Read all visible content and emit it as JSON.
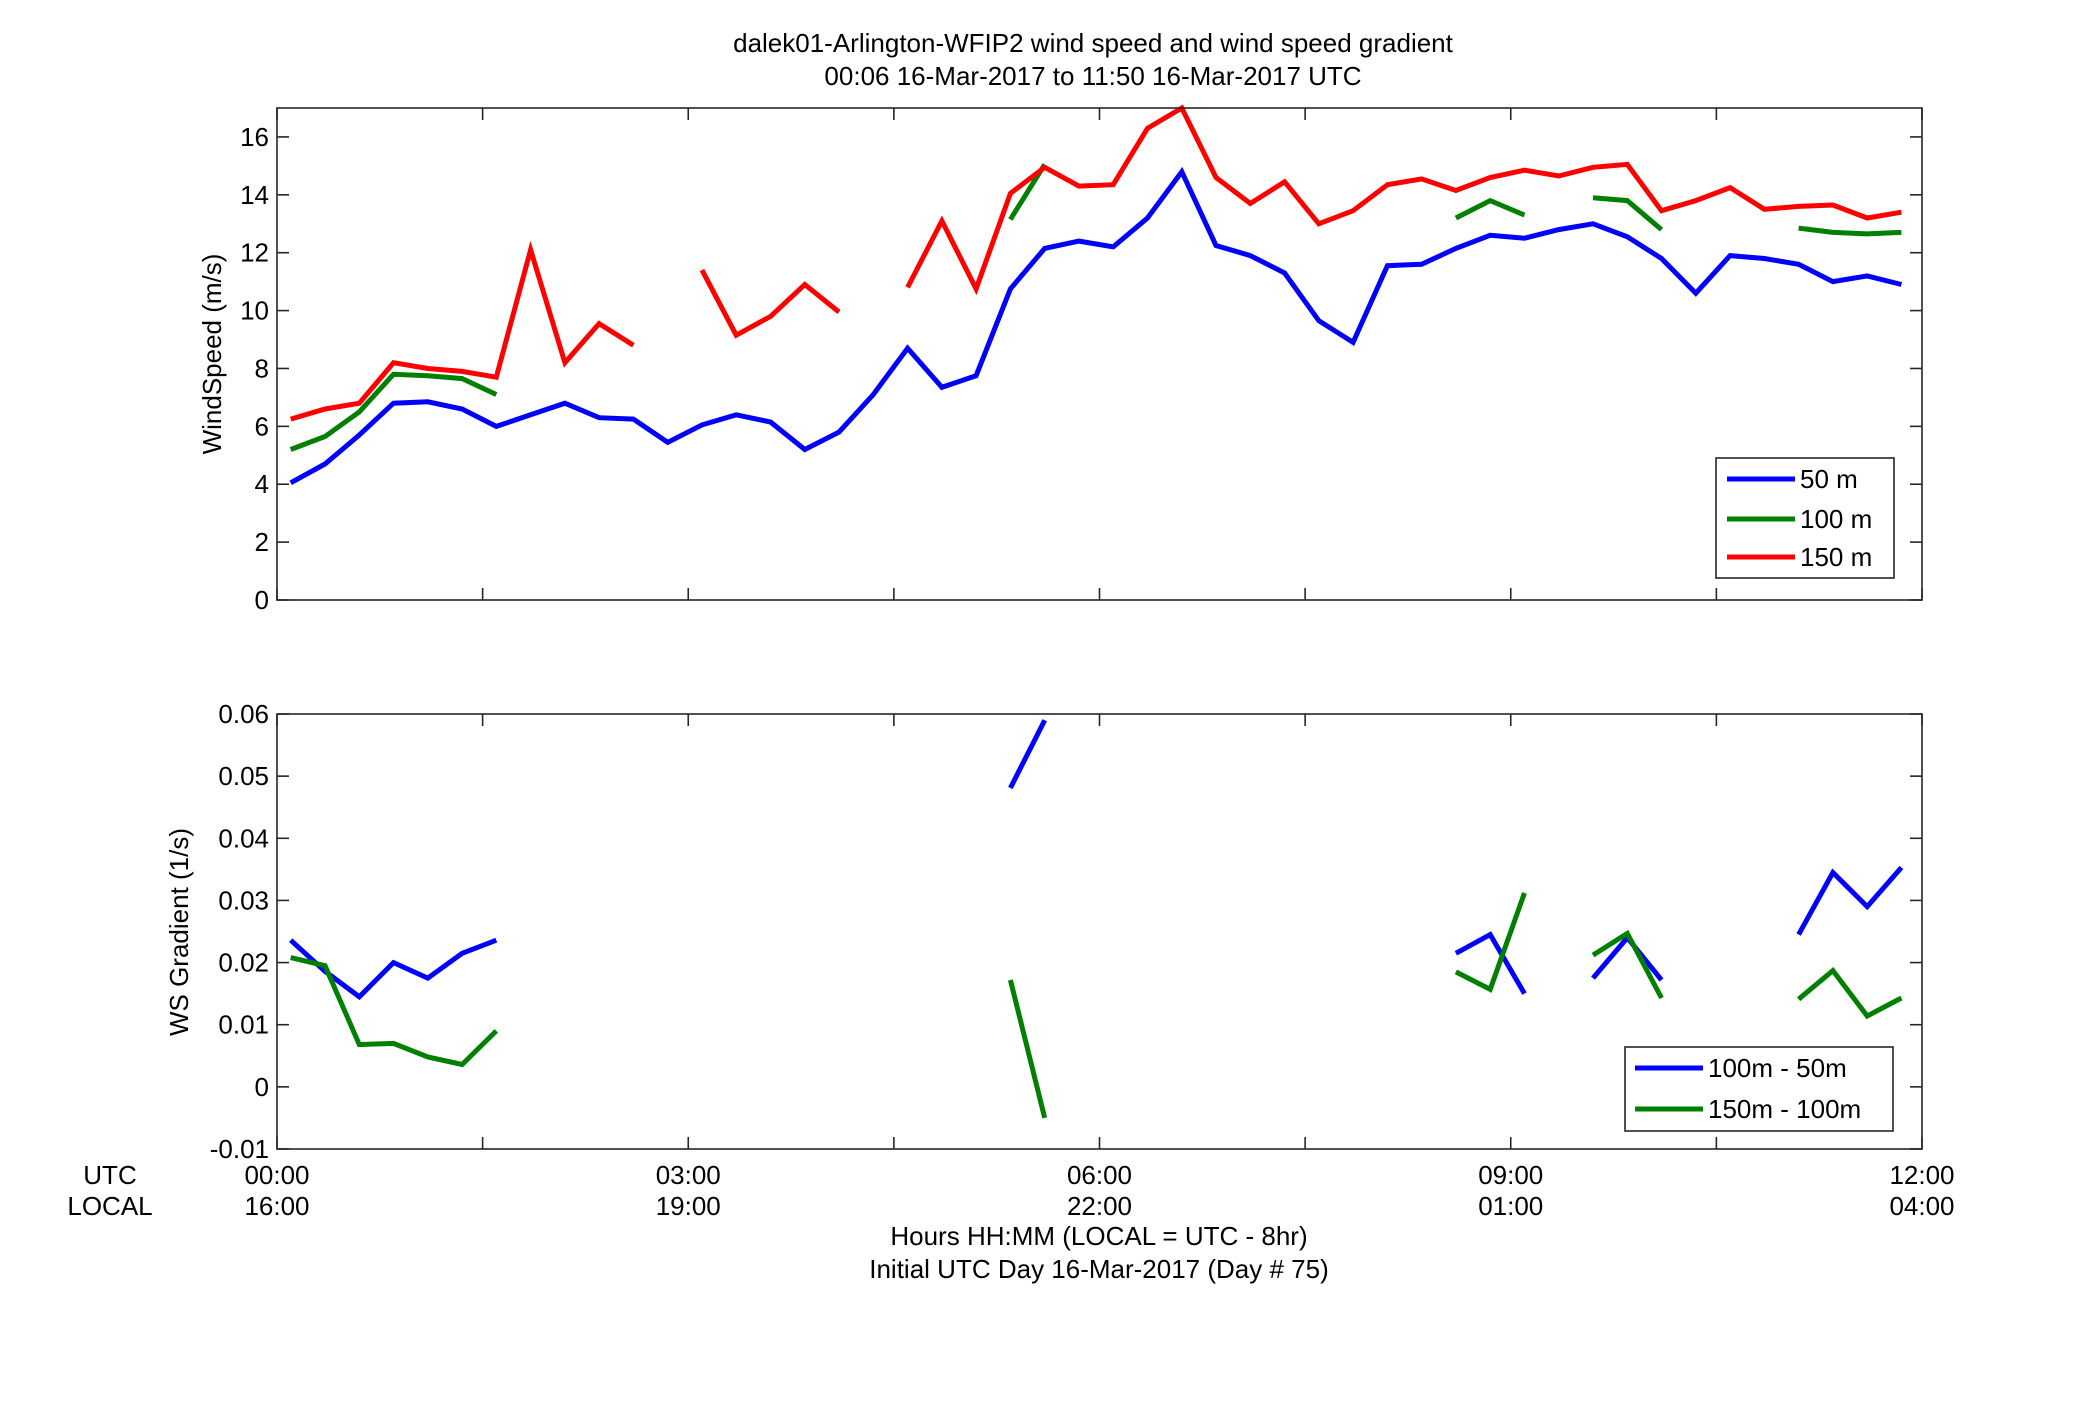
{
  "title_line1": "dalek01-Arlington-WFIP2  wind speed and wind speed gradient",
  "title_line2": "00:06 16-Mar-2017 to 11:50 16-Mar-2017  UTC",
  "xaxis": {
    "row1_label": "UTC",
    "row2_label": "LOCAL",
    "ticks_utc": [
      "00:00",
      "03:00",
      "06:00",
      "09:00",
      "12:00"
    ],
    "ticks_local": [
      "16:00",
      "19:00",
      "22:00",
      "01:00",
      "04:00"
    ],
    "tick_hours": [
      0,
      3,
      6,
      9,
      12
    ],
    "xlabel_line1": "Hours HH:MM  (LOCAL = UTC - 8hr)",
    "xlabel_line2": "Initial UTC Day 16-Mar-2017 (Day # 75)",
    "xlim": [
      0,
      12
    ]
  },
  "chart_data": [
    {
      "type": "line",
      "ylabel": "WindSpeed (m/s)",
      "ylim": [
        0,
        17
      ],
      "yticks": [
        0,
        2,
        4,
        6,
        8,
        10,
        12,
        14,
        16
      ],
      "grid": false,
      "legend_position": "bottom-right",
      "x_unit": "hours UTC",
      "series": [
        {
          "name": "50 m",
          "color": "#0000ff",
          "points": [
            [
              0.1,
              4.05
            ],
            [
              0.35,
              4.7
            ],
            [
              0.6,
              5.7
            ],
            [
              0.85,
              6.8
            ],
            [
              1.1,
              6.85
            ],
            [
              1.35,
              6.6
            ],
            [
              1.6,
              6.0
            ],
            [
              1.85,
              6.4
            ],
            [
              2.1,
              6.8
            ],
            [
              2.35,
              6.3
            ],
            [
              2.6,
              6.25
            ],
            [
              2.85,
              5.45
            ],
            [
              3.1,
              6.05
            ],
            [
              3.35,
              6.4
            ],
            [
              3.6,
              6.15
            ],
            [
              3.85,
              5.2
            ],
            [
              4.1,
              5.8
            ],
            [
              4.35,
              7.1
            ],
            [
              4.6,
              8.7
            ],
            [
              4.85,
              7.35
            ],
            [
              5.1,
              7.75
            ],
            [
              5.35,
              10.75
            ],
            [
              5.6,
              12.15
            ],
            [
              5.85,
              12.4
            ],
            [
              6.1,
              12.2
            ],
            [
              6.35,
              13.2
            ],
            [
              6.6,
              14.8
            ],
            [
              6.85,
              12.25
            ],
            [
              7.1,
              11.9
            ],
            [
              7.35,
              11.3
            ],
            [
              7.6,
              9.65
            ],
            [
              7.85,
              8.9
            ],
            [
              8.1,
              11.55
            ],
            [
              8.35,
              11.6
            ],
            [
              8.6,
              12.15
            ],
            [
              8.85,
              12.6
            ],
            [
              9.1,
              12.5
            ],
            [
              9.35,
              12.8
            ],
            [
              9.6,
              13.0
            ],
            [
              9.85,
              12.55
            ],
            [
              10.1,
              11.8
            ],
            [
              10.35,
              10.6
            ],
            [
              10.6,
              11.9
            ],
            [
              10.85,
              11.8
            ],
            [
              11.1,
              11.6
            ],
            [
              11.35,
              11.0
            ],
            [
              11.6,
              11.2
            ],
            [
              11.85,
              10.9
            ]
          ]
        },
        {
          "name": "100 m",
          "color": "#007f00",
          "segments": [
            [
              [
                0.1,
                5.2
              ],
              [
                0.35,
                5.65
              ],
              [
                0.6,
                6.5
              ],
              [
                0.85,
                7.8
              ],
              [
                1.1,
                7.75
              ],
              [
                1.35,
                7.65
              ],
              [
                1.6,
                7.1
              ]
            ],
            [
              [
                5.35,
                13.15
              ],
              [
                5.6,
                15.05
              ]
            ],
            [
              [
                8.6,
                13.2
              ],
              [
                8.85,
                13.8
              ],
              [
                9.1,
                13.3
              ]
            ],
            [
              [
                9.6,
                13.9
              ],
              [
                9.85,
                13.8
              ],
              [
                10.1,
                12.8
              ]
            ],
            [
              [
                11.1,
                12.85
              ],
              [
                11.35,
                12.7
              ],
              [
                11.6,
                12.65
              ],
              [
                11.85,
                12.7
              ]
            ]
          ]
        },
        {
          "name": "150 m",
          "color": "#ff0000",
          "segments": [
            [
              [
                0.1,
                6.25
              ],
              [
                0.35,
                6.6
              ],
              [
                0.6,
                6.8
              ],
              [
                0.85,
                8.2
              ],
              [
                1.1,
                8.0
              ],
              [
                1.35,
                7.9
              ],
              [
                1.6,
                7.7
              ],
              [
                1.85,
                12.1
              ],
              [
                2.1,
                8.2
              ],
              [
                2.35,
                9.55
              ],
              [
                2.6,
                8.8
              ]
            ],
            [
              [
                3.1,
                11.4
              ],
              [
                3.35,
                9.15
              ],
              [
                3.6,
                9.8
              ],
              [
                3.85,
                10.9
              ],
              [
                4.1,
                9.95
              ]
            ],
            [
              [
                4.6,
                10.8
              ],
              [
                4.85,
                13.1
              ],
              [
                5.1,
                10.75
              ],
              [
                5.35,
                14.05
              ],
              [
                5.6,
                14.95
              ],
              [
                5.85,
                14.3
              ],
              [
                6.1,
                14.35
              ],
              [
                6.35,
                16.3
              ],
              [
                6.6,
                17.0
              ],
              [
                6.85,
                14.6
              ],
              [
                7.1,
                13.7
              ],
              [
                7.35,
                14.45
              ],
              [
                7.6,
                13.0
              ],
              [
                7.85,
                13.45
              ],
              [
                8.1,
                14.35
              ],
              [
                8.35,
                14.55
              ],
              [
                8.6,
                14.15
              ],
              [
                8.85,
                14.6
              ],
              [
                9.1,
                14.85
              ],
              [
                9.35,
                14.65
              ],
              [
                9.6,
                14.95
              ],
              [
                9.85,
                15.05
              ],
              [
                10.1,
                13.45
              ],
              [
                10.35,
                13.8
              ],
              [
                10.6,
                14.25
              ],
              [
                10.85,
                13.5
              ],
              [
                11.1,
                13.6
              ],
              [
                11.35,
                13.65
              ],
              [
                11.6,
                13.2
              ],
              [
                11.85,
                13.4
              ]
            ]
          ]
        }
      ]
    },
    {
      "type": "line",
      "ylabel": "WS Gradient (1/s)",
      "ylim": [
        -0.01,
        0.06
      ],
      "yticks": [
        -0.01,
        0,
        0.01,
        0.02,
        0.03,
        0.04,
        0.05,
        0.06
      ],
      "ytick_labels": [
        "-0.01",
        "0",
        "0.01",
        "0.02",
        "0.03",
        "0.04",
        "0.05",
        "0.06"
      ],
      "grid": false,
      "legend_position": "bottom-right",
      "x_unit": "hours UTC",
      "series": [
        {
          "name": "100m - 50m",
          "color": "#0000ff",
          "segments": [
            [
              [
                0.1,
                0.0236
              ],
              [
                0.35,
                0.0186
              ],
              [
                0.6,
                0.0145
              ],
              [
                0.85,
                0.02
              ],
              [
                1.1,
                0.0175
              ],
              [
                1.35,
                0.0215
              ],
              [
                1.6,
                0.0236
              ]
            ],
            [
              [
                5.35,
                0.0481
              ],
              [
                5.6,
                0.059
              ]
            ],
            [
              [
                8.6,
                0.0215
              ],
              [
                8.85,
                0.0245
              ],
              [
                9.1,
                0.015
              ]
            ],
            [
              [
                9.6,
                0.0175
              ],
              [
                9.85,
                0.024
              ],
              [
                10.1,
                0.0172
              ]
            ],
            [
              [
                11.1,
                0.0245
              ],
              [
                11.35,
                0.0345
              ],
              [
                11.6,
                0.029
              ],
              [
                11.85,
                0.0353
              ]
            ]
          ]
        },
        {
          "name": "150m - 100m",
          "color": "#007f00",
          "segments": [
            [
              [
                0.1,
                0.0208
              ],
              [
                0.35,
                0.0195
              ],
              [
                0.6,
                0.0068
              ],
              [
                0.85,
                0.007
              ],
              [
                1.1,
                0.0048
              ],
              [
                1.35,
                0.0036
              ],
              [
                1.6,
                0.009
              ]
            ],
            [
              [
                5.35,
                0.0172
              ],
              [
                5.6,
                -0.005
              ]
            ],
            [
              [
                8.6,
                0.0185
              ],
              [
                8.85,
                0.0157
              ],
              [
                9.1,
                0.0312
              ]
            ],
            [
              [
                9.6,
                0.0212
              ],
              [
                9.85,
                0.0247
              ],
              [
                10.1,
                0.0143
              ]
            ],
            [
              [
                11.1,
                0.0141
              ],
              [
                11.35,
                0.0187
              ],
              [
                11.6,
                0.0114
              ],
              [
                11.85,
                0.0143
              ]
            ]
          ]
        }
      ]
    }
  ]
}
